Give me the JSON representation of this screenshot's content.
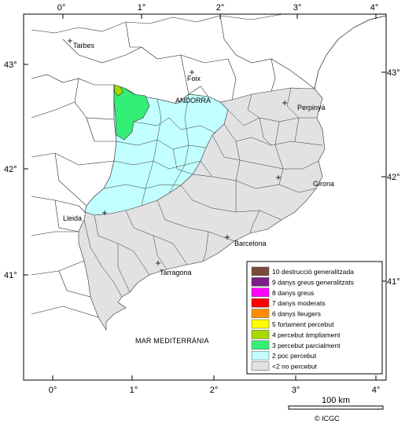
{
  "lon_labels": [
    "0°",
    "1°",
    "2°",
    "3°",
    "4°"
  ],
  "lat_labels": [
    "43°",
    "42°",
    "41°"
  ],
  "places": {
    "tarbes": "Tarbes",
    "foix": "Foix",
    "andorra": "ANDORRA",
    "perpinya": "Perpinyà",
    "girona": "Girona",
    "lleida": "Lleida",
    "barcelona": "Barcelona",
    "tarragona": "Tarragona",
    "sea": "MAR MEDITERRÀNIA"
  },
  "legend": {
    "items": [
      {
        "label": "10 destrucció generalitzada",
        "color": "#7b4a3c"
      },
      {
        "label": "9 danys greus generalitzats",
        "color": "#7a1e86"
      },
      {
        "label": "8 danys greus",
        "color": "#ff00ff"
      },
      {
        "label": "7 danys moderats",
        "color": "#ff0000"
      },
      {
        "label": "6 danys lleugers",
        "color": "#ff8c00"
      },
      {
        "label": "5 fortament percebut",
        "color": "#ffff00"
      },
      {
        "label": "4 percebut àmpliament",
        "color": "#a6d900"
      },
      {
        "label": "3 percebut parcialment",
        "color": "#33ee77"
      },
      {
        "label": "2 poc percebut",
        "color": "#c2ffff"
      },
      {
        "label": "<2 no percebut",
        "color": "#e2e2e2"
      }
    ]
  },
  "scale": {
    "label": "100 km"
  },
  "credit": "© ICGC",
  "colors": {
    "no_percebut": "#e2e2e2",
    "poc_percebut": "#c2ffff",
    "percebut_parcialment": "#33ee77",
    "percebut_ampliament": "#a6d900"
  }
}
